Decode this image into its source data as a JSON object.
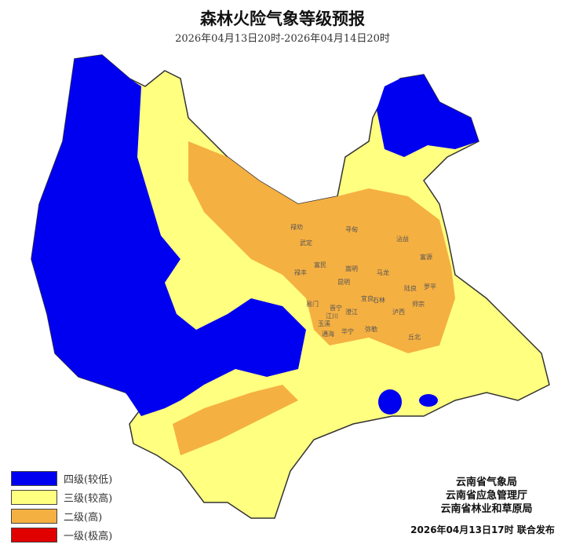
{
  "title": "森林火险气象等级预报",
  "subtitle": "2026年04月13日20时-2026年04月14日20时",
  "legend": [
    {
      "label": "四级(较低)",
      "color": "#0000f0"
    },
    {
      "label": "三级(较高)",
      "color": "#ffff80"
    },
    {
      "label": "二级(高)",
      "color": "#f5b042"
    },
    {
      "label": "一级(极高)",
      "color": "#e00000"
    }
  ],
  "issuers": [
    "云南省气象局",
    "云南省应急管理厅",
    "云南省林业和草原局"
  ],
  "issue_date": "2026年04月13日17时  联合发布",
  "counties": [
    "禄劝",
    "武定",
    "寻甸",
    "富民",
    "嵩明",
    "马龙",
    "沾益",
    "富源",
    "昆明",
    "宜良",
    "石林",
    "陆良",
    "罗平",
    "师宗",
    "晋宁",
    "澄江",
    "泸西",
    "弥勒",
    "丘北",
    "玉溪",
    "江川",
    "华宁",
    "通海",
    "禄丰",
    "易门"
  ]
}
